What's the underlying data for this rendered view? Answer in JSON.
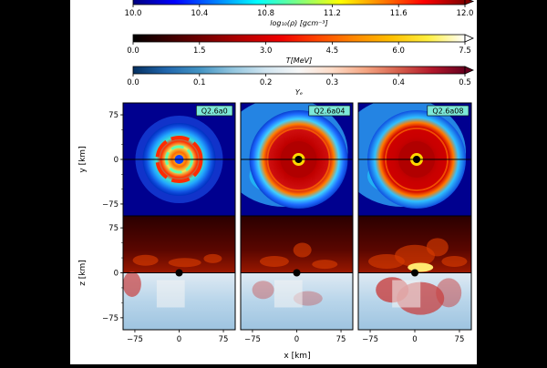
{
  "chart_data": {
    "type": "heatmap",
    "colorbars": [
      {
        "label": "log₁₀(ρ) [gcm⁻³]",
        "colormap": "jet",
        "range": [
          10.0,
          12.0
        ],
        "ticks": [
          "10.0",
          "10.4",
          "10.8",
          "11.2",
          "11.6",
          "12.0"
        ]
      },
      {
        "label": "T[MeV]",
        "colormap": "hot",
        "range": [
          0.0,
          7.5
        ],
        "ticks": [
          "0.0",
          "1.5",
          "3.0",
          "4.5",
          "6.0",
          "7.5"
        ]
      },
      {
        "label": "Yₑ",
        "colormap": "RdBu_r",
        "range": [
          0.0,
          0.5
        ],
        "ticks": [
          "0.0",
          "0.1",
          "0.2",
          "0.3",
          "0.4",
          "0.5"
        ]
      }
    ],
    "panels": [
      {
        "title": "Q2.6a0"
      },
      {
        "title": "Q2.6a04"
      },
      {
        "title": "Q2.6a08"
      }
    ],
    "xlabel": "x [km]",
    "ylabel_top": "y [km]",
    "ylabel_bottom": "z [km]",
    "xlim": [
      -95,
      95
    ],
    "ylim_top": [
      -95,
      95
    ],
    "zlim": [
      -95,
      95
    ],
    "xticks": [
      "−75",
      "0",
      "75"
    ],
    "yticks_top": [
      "75",
      "0",
      "−75"
    ],
    "zticks": [
      "75",
      "0",
      "−75"
    ],
    "colors": {
      "jet_bg": "#00008f",
      "disk_red": "#c80000",
      "hot_dark": "#3a0000",
      "ye_blue": "#c3dcee"
    }
  }
}
